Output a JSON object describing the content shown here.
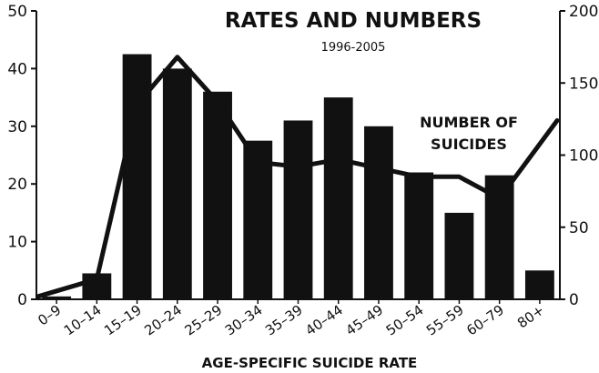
{
  "chart_data": {
    "type": "bar",
    "title": "RATES AND NUMBERS",
    "subtitle": "1996-2005",
    "xlabel": "AGE-SPECIFIC SUICIDE RATE",
    "annotation_line1": "NUMBER OF",
    "annotation_line2": "SUICIDES",
    "categories": [
      "0–9",
      "10–14",
      "15–19",
      "20–24",
      "25–29",
      "30–34",
      "35–39",
      "40–44",
      "45–49",
      "50–54",
      "55–59",
      "60–79",
      "80+"
    ],
    "y_left": {
      "ticks": [
        "0",
        "10",
        "20",
        "30",
        "40",
        "50"
      ],
      "lim": [
        0,
        50
      ]
    },
    "y_right": {
      "ticks": [
        "0",
        "50",
        "100",
        "150",
        "200"
      ],
      "lim": [
        0,
        200
      ]
    },
    "series": [
      {
        "type": "bar",
        "axis": "left",
        "values": [
          0.5,
          4.5,
          42.5,
          40,
          36,
          27.5,
          31,
          35,
          30,
          22,
          15,
          21.5,
          5
        ]
      },
      {
        "type": "line",
        "axis": "right",
        "values": [
          2,
          14,
          135,
          168,
          137,
          95,
          92,
          97,
          91,
          85,
          85,
          70,
          124
        ]
      }
    ],
    "colors": {
      "bar": "#111111",
      "line": "#111111"
    }
  }
}
